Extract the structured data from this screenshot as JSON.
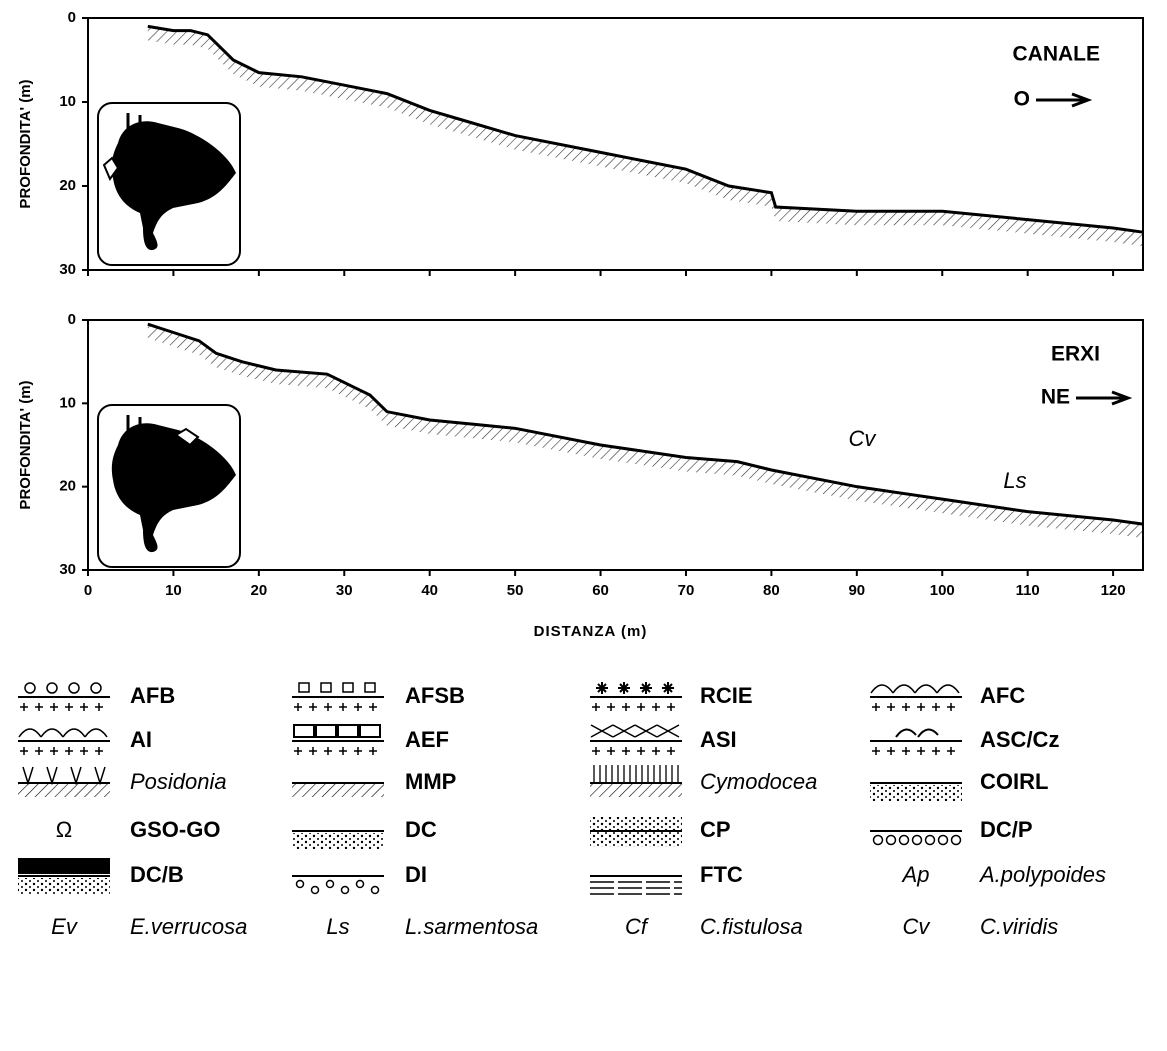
{
  "chart_data": [
    {
      "type": "line",
      "ylabel": "PROFONDITA' (m)",
      "site": "CANALE",
      "direction": "O",
      "xlim": [
        0,
        123.5
      ],
      "ylim": [
        0,
        30
      ],
      "yticks": [
        0,
        10,
        20,
        30
      ],
      "x": [
        7,
        10,
        12,
        14,
        15,
        16,
        17,
        20,
        25,
        30,
        35,
        40,
        45,
        50,
        60,
        70,
        75,
        80,
        80.5,
        90,
        100,
        110,
        120,
        123.5
      ],
      "values": [
        1,
        1.5,
        1.5,
        2,
        3,
        4,
        5,
        6.5,
        7,
        8,
        9,
        11,
        12.5,
        14,
        16,
        18,
        20,
        20.8,
        22.5,
        23,
        23,
        24,
        25,
        25.5
      ],
      "color": "#000000"
    },
    {
      "type": "line",
      "ylabel": "PROFONDITA' (m)",
      "xlabel": "DISTANZA (m)",
      "site": "ERXI",
      "direction": "NE",
      "labels": [
        "Cv",
        "Ls"
      ],
      "xlim": [
        0,
        123.5
      ],
      "ylim": [
        0,
        30
      ],
      "yticks": [
        0,
        10,
        20,
        30
      ],
      "xticks": [
        0,
        10,
        20,
        30,
        40,
        50,
        60,
        70,
        80,
        90,
        100,
        110,
        120
      ],
      "x": [
        7,
        10,
        13,
        15,
        18,
        22,
        28,
        31,
        33,
        35,
        40,
        45,
        50,
        60,
        70,
        76,
        80,
        90,
        100,
        110,
        120,
        123.5
      ],
      "values": [
        0.5,
        1.5,
        2.5,
        4,
        5,
        6,
        6.5,
        8,
        9,
        11,
        12,
        12.5,
        13,
        15,
        16.5,
        17,
        18,
        20,
        21.5,
        23,
        24,
        24.5
      ],
      "color": "#000000"
    }
  ],
  "legend": [
    [
      {
        "label": "AFB"
      },
      {
        "label": "AFSB"
      },
      {
        "label": "RCIE"
      },
      {
        "label": "AFC"
      }
    ],
    [
      {
        "label": "AI"
      },
      {
        "label": "AEF"
      },
      {
        "label": "ASI"
      },
      {
        "label": "ASC/Cz"
      }
    ],
    [
      {
        "label": "Posidonia",
        "italic": true
      },
      {
        "label": "MMP"
      },
      {
        "label": "Cymodocea",
        "italic": true
      },
      {
        "label": "COIRL"
      }
    ],
    [
      {
        "symbol": "Ω",
        "label": "GSO-GO"
      },
      {
        "label": "DC"
      },
      {
        "label": "CP"
      },
      {
        "label": "DC/P"
      }
    ],
    [
      {
        "label": "DC/B"
      },
      {
        "label": "DI"
      },
      {
        "label": "FTC"
      },
      {
        "symbol": "Ap",
        "label": "A.polypoides",
        "italic": true
      }
    ],
    [
      {
        "symbol": "Ev",
        "label": "E.verrucosa",
        "italic": true
      },
      {
        "symbol": "Ls",
        "label": "L.sarmentosa",
        "italic": true
      },
      {
        "symbol": "Cf",
        "label": "C.fistulosa",
        "italic": true
      },
      {
        "symbol": "Cv",
        "label": "C.viridis",
        "italic": true
      }
    ]
  ]
}
